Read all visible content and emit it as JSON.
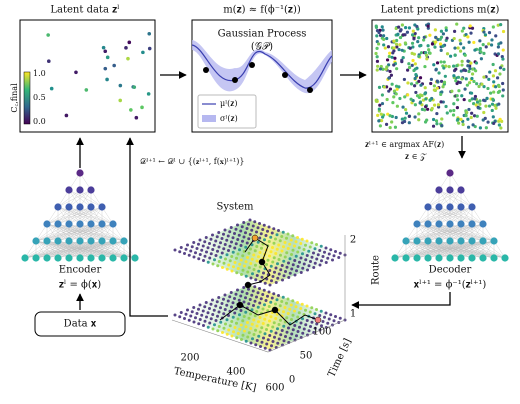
{
  "panels": {
    "latent_data": {
      "title": "Latent data 𝐳ˡ",
      "colorbar": {
        "label": "C꜀,final",
        "ticks": [
          "1.0",
          "0.5",
          "0.0"
        ]
      }
    },
    "surrogate": {
      "title": "m(𝐳) ≈ f(ϕ⁻¹(𝐳))",
      "heading": "Gaussian Process",
      "subheading": "(𝒢𝒫)",
      "legend": [
        "μˡ(𝐳)",
        "σˡ(𝐳)"
      ]
    },
    "predictions": {
      "title": "Latent predictions m(𝐳)"
    }
  },
  "acquisition": {
    "line1": "𝐳ˡ⁺¹ ∈ argmax AF(𝐳)",
    "line2": "𝐳 ∈ 𝒵"
  },
  "dataset_update": "𝒟ˡ⁺¹ ← 𝒟ˡ ∪ {(𝐳ˡ⁺¹, f(𝐱)ˡ⁺¹)}",
  "encoder": {
    "label": "Encoder",
    "formula": "𝐳ˡ = ϕ(𝐱)",
    "input": "Data 𝐱"
  },
  "decoder": {
    "label": "Decoder",
    "formula": "𝐱ˡ⁺¹ = ϕ⁻¹(𝐳ˡ⁺¹)"
  },
  "system": {
    "title": "System",
    "x_label": "Temperature [K]",
    "x_ticks": [
      "200",
      "400",
      "600"
    ],
    "y_label": "Time [s]",
    "y_ticks": [
      "0",
      "50",
      "100"
    ],
    "z_label": "Route",
    "z_ticks": [
      "1",
      "2"
    ]
  }
}
